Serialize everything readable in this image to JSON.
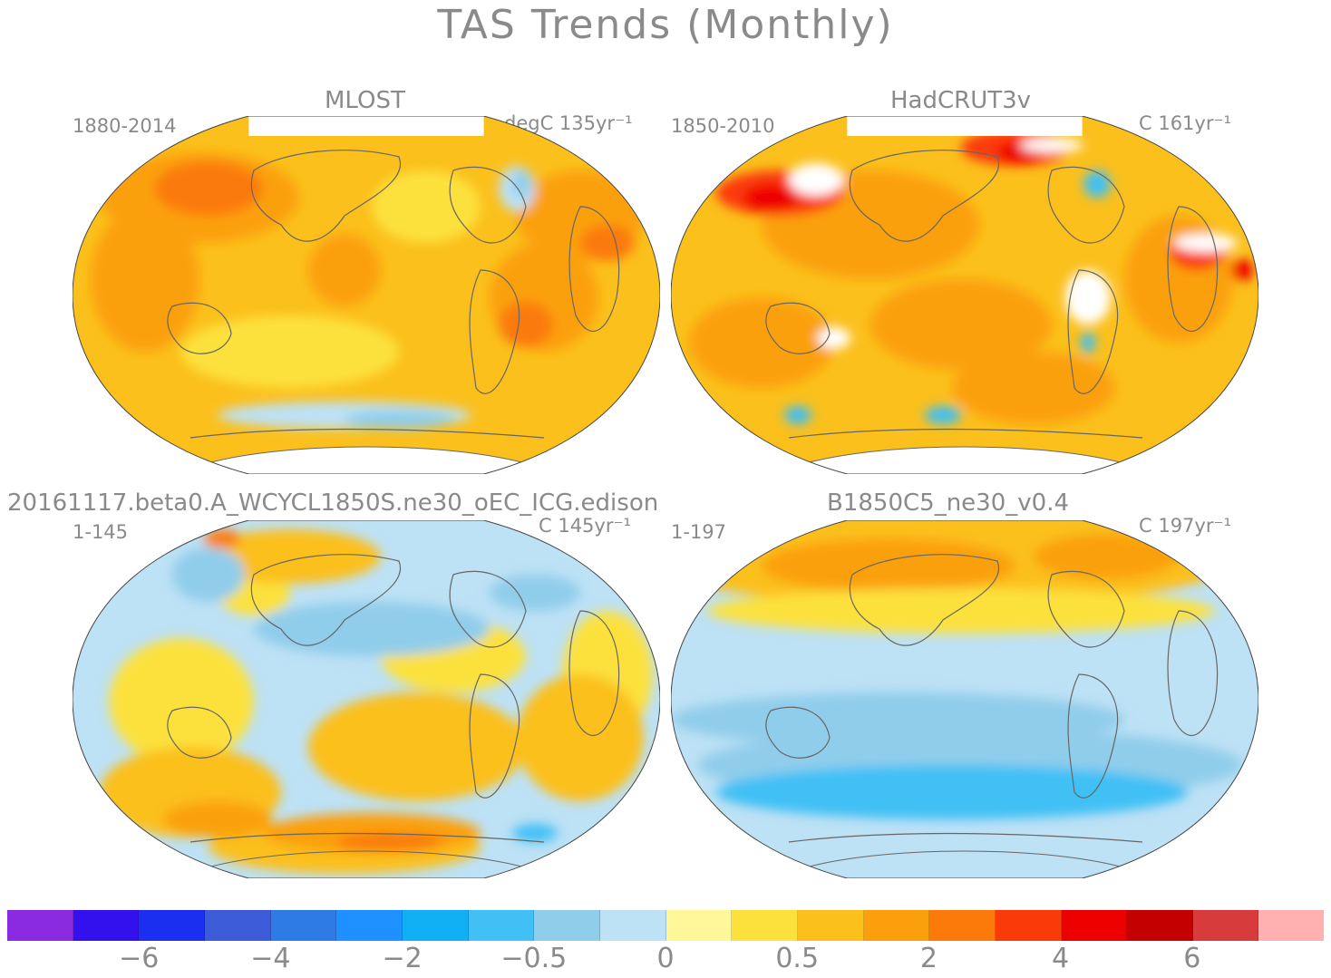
{
  "title": "TAS Trends (Monthly)",
  "panels": [
    {
      "name": "MLOST",
      "period": "1880-2014",
      "units": "degC 135yr⁻¹",
      "scheme": "warm"
    },
    {
      "name": "HadCRUT3v",
      "period": "1850-2010",
      "units": "C 161yr⁻¹",
      "scheme": "hot"
    },
    {
      "name": "20161117.beta0.A_WCYCL1850S.ne30_oEC_ICG.edison",
      "period": "1-145",
      "units": "C 145yr⁻¹",
      "scheme": "mixed"
    },
    {
      "name": "B1850C5_ne30_v0.4",
      "period": "1-197",
      "units": "C 197yr⁻¹",
      "scheme": "cool"
    }
  ],
  "colorbar": {
    "colors": [
      "#8a2be2",
      "#3311ee",
      "#1a2ff0",
      "#3b5bd9",
      "#2f7be6",
      "#1e90ff",
      "#11b0f5",
      "#40c0f5",
      "#90cdeb",
      "#bde1f5",
      "#fff79a",
      "#fce13c",
      "#fbc01c",
      "#fba00c",
      "#fb7a0a",
      "#fb3a0a",
      "#ee0000",
      "#c50000",
      "#d83b3b",
      "#ffb0b0"
    ],
    "tick_labels": [
      "−6",
      "−4",
      "−2",
      "−0.5",
      "0",
      "0.5",
      "2",
      "4",
      "6"
    ]
  },
  "colors": {
    "text": "#8a8a8a",
    "coast": "#666666",
    "land_missing": "#ffffff"
  }
}
